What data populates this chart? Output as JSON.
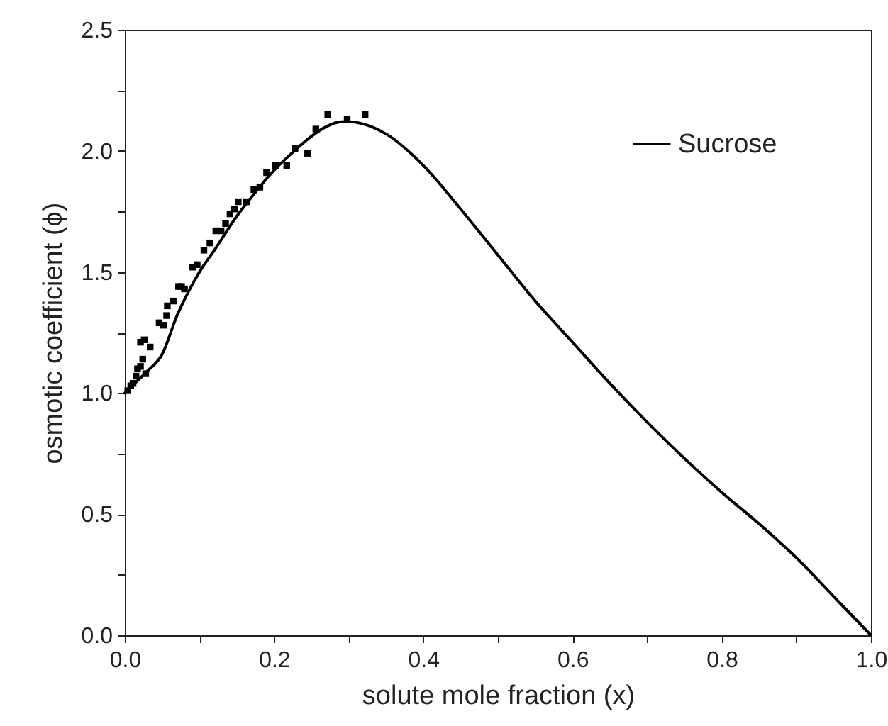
{
  "chart_data": {
    "type": "line",
    "xlabel": "solute mole fraction (x)",
    "ylabel": "osmotic coefficient (ϕ)",
    "xlim": [
      0,
      1
    ],
    "ylim": [
      0,
      2.5
    ],
    "xticks": [
      {
        "value": 0,
        "label": "0.0"
      },
      {
        "value": 0.1,
        "label": null
      },
      {
        "value": 0.2,
        "label": "0.2"
      },
      {
        "value": 0.3,
        "label": null
      },
      {
        "value": 0.4,
        "label": "0.4"
      },
      {
        "value": 0.5,
        "label": null
      },
      {
        "value": 0.6,
        "label": "0.6"
      },
      {
        "value": 0.7,
        "label": null
      },
      {
        "value": 0.8,
        "label": "0.8"
      },
      {
        "value": 0.9,
        "label": null
      },
      {
        "value": 1,
        "label": "1.0"
      }
    ],
    "yticks": [
      {
        "value": 0,
        "label": "0.0"
      },
      {
        "value": 0.25,
        "label": null
      },
      {
        "value": 0.5,
        "label": "0.5"
      },
      {
        "value": 0.75,
        "label": null
      },
      {
        "value": 1,
        "label": "1.0"
      },
      {
        "value": 1.25,
        "label": null
      },
      {
        "value": 1.5,
        "label": "1.5"
      },
      {
        "value": 1.75,
        "label": null
      },
      {
        "value": 2,
        "label": "2.0"
      },
      {
        "value": 2.25,
        "label": null
      },
      {
        "value": 2.5,
        "label": "2.5"
      }
    ],
    "legend": "top right",
    "grid": false,
    "series": [
      {
        "name": "Sucrose",
        "color": "#000000",
        "marker": "none",
        "line_style": "solid",
        "x": [
          0,
          0.02,
          0.03,
          0.05,
          0.07,
          0.1,
          0.12,
          0.15,
          0.17,
          0.2,
          0.22,
          0.25,
          0.27,
          0.29,
          0.3,
          0.35,
          0.4,
          0.45,
          0.5,
          0.55,
          0.6,
          0.65,
          0.7,
          0.75,
          0.8,
          0.85,
          0.9,
          0.95,
          1
        ],
        "values": [
          1.0,
          1.06,
          1.09,
          1.16,
          1.32,
          1.5,
          1.59,
          1.73,
          1.81,
          1.92,
          1.98,
          2.06,
          2.1,
          2.12,
          2.12,
          2.07,
          1.94,
          1.76,
          1.57,
          1.38,
          1.21,
          1.04,
          0.88,
          0.73,
          0.59,
          0.46,
          0.32,
          0.16,
          0
        ]
      },
      {
        "type": "scatter",
        "color": "#000000",
        "marker": "square",
        "x": [
          0.004,
          0.008,
          0.011,
          0.015,
          0.017,
          0.021,
          0.024,
          0.028,
          0.021,
          0.026,
          0.034,
          0.046,
          0.052,
          0.056,
          0.057,
          0.065,
          0.072,
          0.076,
          0.08,
          0.091,
          0.097,
          0.106,
          0.114,
          0.122,
          0.129,
          0.135,
          0.141,
          0.147,
          0.152,
          0.163,
          0.173,
          0.181,
          0.19,
          0.202,
          0.217,
          0.228,
          0.245,
          0.256,
          0.272,
          0.298,
          0.322
        ],
        "values": [
          1.01,
          1.03,
          1.04,
          1.07,
          1.1,
          1.11,
          1.14,
          1.08,
          1.21,
          1.22,
          1.19,
          1.29,
          1.28,
          1.32,
          1.36,
          1.38,
          1.44,
          1.44,
          1.43,
          1.52,
          1.53,
          1.59,
          1.62,
          1.67,
          1.67,
          1.7,
          1.74,
          1.76,
          1.79,
          1.79,
          1.84,
          1.85,
          1.91,
          1.94,
          1.94,
          2.01,
          1.99,
          2.09,
          2.15,
          2.13,
          2.15
        ]
      }
    ]
  }
}
